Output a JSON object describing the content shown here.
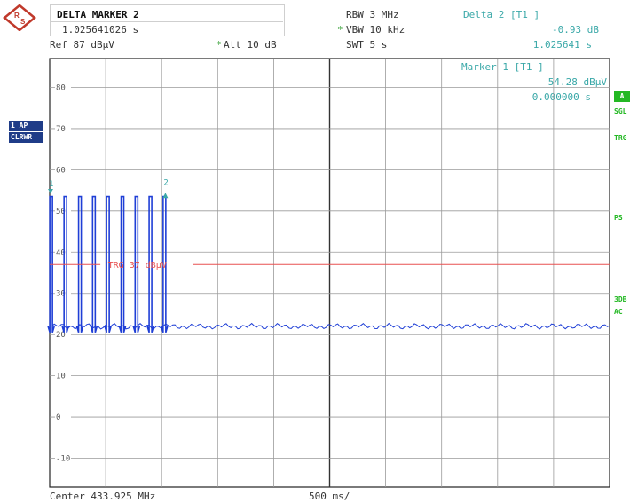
{
  "header": {
    "marker_title": "DELTA MARKER 2",
    "marker_time": "1.025641026 s",
    "ref": "Ref  87 dBµV",
    "att_star": "*",
    "att": "Att  10 dB",
    "rbw": "RBW  3 MHz",
    "vbw_star": "*",
    "vbw": "VBW  10 kHz",
    "swt": "SWT  5 s",
    "delta_label": "Delta 2 [T1 ]",
    "delta_db": "-0.93 dB",
    "delta_time": "1.025641 s"
  },
  "marker1": {
    "label": "Marker 1 [T1 ]",
    "level": "54.28 dBµV",
    "time": "0.000000 s"
  },
  "left_tags": {
    "trace": "1 AP",
    "mode": "CLRWR"
  },
  "right_tags": {
    "a": "A",
    "sgl": "SGL",
    "trg": "TRG",
    "ps": "PS",
    "threedb": "3DB",
    "ac": "AC"
  },
  "footer": {
    "center": "Center 433.925 MHz",
    "span": "500 ms/"
  },
  "colors": {
    "trace": "#1f3fd6",
    "trigger": "#e85050",
    "grid": "#9a9a9a",
    "marker": "#3aa8a8"
  },
  "chart_data": {
    "type": "line",
    "title": "",
    "xlabel": "",
    "ylabel": "",
    "xlim": [
      0,
      5
    ],
    "ylim": [
      -17,
      87
    ],
    "yticks": [
      80,
      70,
      60,
      50,
      40,
      30,
      20,
      10,
      0,
      -10
    ],
    "ytick_labels": [
      "80",
      "70",
      "60",
      "50",
      "40",
      "30",
      "20",
      "10",
      "0",
      "-10"
    ],
    "grid": true,
    "trigger_level": 37,
    "trigger_label": "TRG 37 dBµV",
    "burst_times": [
      0.013,
      0.14,
      0.27,
      0.395,
      0.52,
      0.65,
      0.775,
      0.9,
      1.025
    ],
    "burst_peak": 53.5,
    "burst_floor": 20.5,
    "noise_floor": 22,
    "markers": [
      {
        "name": "1",
        "x": 0.0,
        "y": 54.28
      },
      {
        "name": "2",
        "x": 1.025641,
        "y": 53.35
      }
    ]
  }
}
